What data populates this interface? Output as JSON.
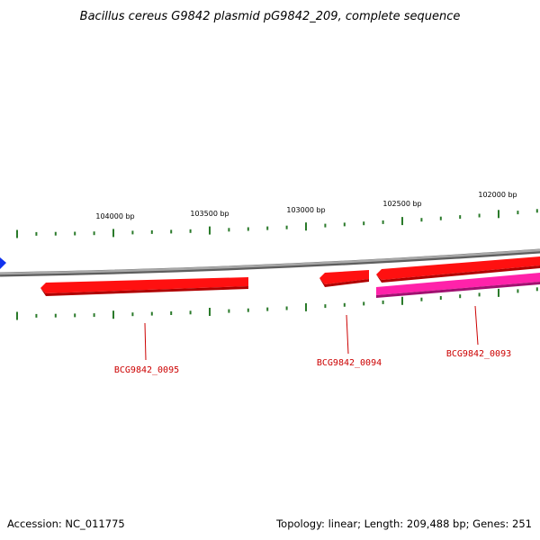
{
  "title": "Bacillus cereus G9842 plasmid pG9842_209, complete sequence",
  "colors": {
    "backbone": "#8c8c8c",
    "tick": "#2a7a2a",
    "gene_red": "#ff1010",
    "gene_magenta": "#ff22aa",
    "label_red": "#cc0000",
    "marker_blue": "#1133ee"
  },
  "scale_labels": [
    "104000 bp",
    "103500 bp",
    "103000 bp",
    "102500 bp",
    "102000 bp"
  ],
  "genes": [
    {
      "id": "BCG9842_0095",
      "label": "BCG9842_0095",
      "color": "#ff1010",
      "strand": "reverse"
    },
    {
      "id": "BCG9842_0094",
      "label": "BCG9842_0094",
      "color": "#ff1010",
      "strand": "reverse"
    },
    {
      "id": "BCG9842_0093a",
      "label": "",
      "color": "#ff1010",
      "strand": "reverse"
    },
    {
      "id": "BCG9842_0093",
      "label": "BCG9842_0093",
      "color": "#ff22aa",
      "strand": "forward"
    }
  ],
  "footer": {
    "accession": "Accession: NC_011775",
    "info": "Topology: linear; Length: 209,488 bp; Genes: 251"
  }
}
